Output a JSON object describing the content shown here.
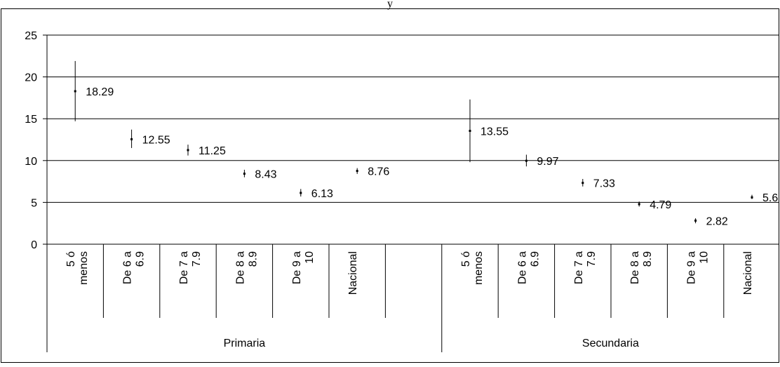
{
  "chart_data": {
    "type": "error_bar",
    "title": "y",
    "yticks": [
      "0",
      "5",
      "10",
      "15",
      "20",
      "25"
    ],
    "ylim": [
      0,
      25
    ],
    "grid": true,
    "groups": [
      {
        "name": "Primaria",
        "categories": [
          {
            "line1": "5 ó",
            "line2": "menos",
            "value": 18.29,
            "label": "18.29",
            "low": 14.7,
            "high": 21.9
          },
          {
            "line1": "De 6 a",
            "line2": "6.9",
            "value": 12.55,
            "label": "12.55",
            "low": 11.5,
            "high": 13.7
          },
          {
            "line1": "De 7 a",
            "line2": "7.9",
            "value": 11.25,
            "label": "11.25",
            "low": 10.6,
            "high": 11.9
          },
          {
            "line1": "De 8 a",
            "line2": "8.9",
            "value": 8.43,
            "label": "8.43",
            "low": 8.0,
            "high": 8.9
          },
          {
            "line1": "De 9 a",
            "line2": "10",
            "value": 6.13,
            "label": "6.13",
            "low": 5.7,
            "high": 6.6
          },
          {
            "line1": "Nacional",
            "line2": "",
            "value": 8.76,
            "label": "8.76",
            "low": 8.4,
            "high": 9.1
          },
          {
            "line1": "",
            "line2": "",
            "value": null,
            "label": "",
            "low": null,
            "high": null
          }
        ]
      },
      {
        "name": "Secundaria",
        "categories": [
          {
            "line1": "5 ó",
            "line2": "menos",
            "value": 13.55,
            "label": "13.55",
            "low": 9.8,
            "high": 17.3
          },
          {
            "line1": "De 6 a",
            "line2": "6.9",
            "value": 9.97,
            "label": "9.97",
            "low": 9.3,
            "high": 10.7
          },
          {
            "line1": "De 7 a",
            "line2": "7.9",
            "value": 7.33,
            "label": "7.33",
            "low": 6.9,
            "high": 7.8
          },
          {
            "line1": "De 8 a",
            "line2": "8.9",
            "value": 4.79,
            "label": "4.79",
            "low": 4.5,
            "high": 5.1
          },
          {
            "line1": "De 9 a",
            "line2": "10",
            "value": 2.82,
            "label": "2.82",
            "low": 2.5,
            "high": 3.1
          },
          {
            "line1": "Nacional",
            "line2": "",
            "value": 5.6,
            "label": "5.6",
            "low": 5.4,
            "high": 5.9
          }
        ]
      }
    ]
  }
}
